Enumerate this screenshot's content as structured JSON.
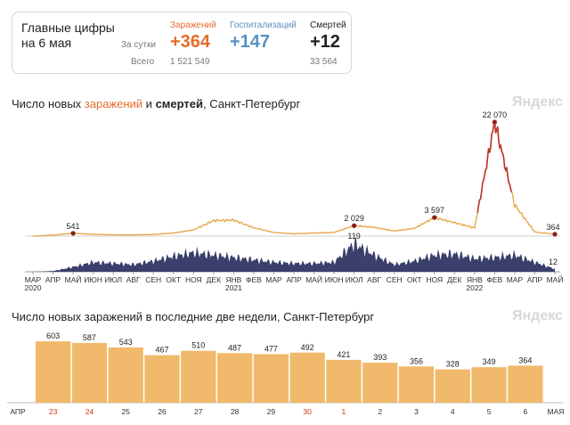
{
  "summary": {
    "title": "Главные цифры на 6 мая",
    "per_day_label": "За сутки",
    "total_label": "Всего",
    "columns": [
      {
        "header": "Заражений",
        "today": "+364",
        "total": "1 521 549",
        "color": "#e56c2c"
      },
      {
        "header": "Госпитализаций",
        "today": "+147",
        "total": "",
        "color": "#5a8fc4"
      },
      {
        "header": "Смертей",
        "today": "+12",
        "total": "33 564",
        "color": "#222222"
      }
    ]
  },
  "watermark": "Яндекс",
  "chart1": {
    "title_parts": [
      {
        "text": "Число новых ",
        "style": "normal"
      },
      {
        "text": "заражений",
        "style": "orange"
      },
      {
        "text": " и ",
        "style": "normal"
      },
      {
        "text": "смертей",
        "style": "bold"
      },
      {
        "text": ", Санкт-Петербург",
        "style": "normal"
      }
    ]
  },
  "chart2": {
    "title": "Число новых заражений в последние две недели, Санкт-Петербург"
  },
  "chart_data": [
    {
      "type": "area",
      "series": [
        {
          "name": "заражений",
          "color": "#e8a84c",
          "x_month_index": [
            0,
            1,
            2,
            3,
            4,
            5,
            6,
            7,
            8,
            9,
            10,
            11,
            12,
            13,
            14,
            15,
            16,
            17,
            18,
            19,
            20,
            21,
            22,
            23,
            24,
            25,
            26
          ],
          "values": [
            0,
            200,
            541,
            350,
            250,
            230,
            320,
            600,
            1200,
            3000,
            3100,
            1600,
            700,
            450,
            600,
            700,
            2029,
            1700,
            1000,
            1500,
            3597,
            2600,
            1600,
            22070,
            6000,
            800,
            364
          ]
        },
        {
          "name": "смертей",
          "color": "#3a3f6b",
          "x_month_index": [
            0,
            1,
            2,
            3,
            4,
            5,
            6,
            7,
            8,
            9,
            10,
            11,
            12,
            13,
            14,
            15,
            16,
            17,
            18,
            19,
            20,
            21,
            22,
            23,
            24,
            25,
            26
          ],
          "values": [
            0,
            3,
            20,
            40,
            35,
            30,
            45,
            65,
            80,
            70,
            60,
            50,
            40,
            35,
            35,
            40,
            119,
            70,
            30,
            45,
            70,
            75,
            55,
            60,
            70,
            40,
            12
          ]
        }
      ],
      "annotations": [
        {
          "label": "541",
          "series": "заражений"
        },
        {
          "label": "2 029",
          "series": "заражений"
        },
        {
          "label": "3 597",
          "series": "заражений"
        },
        {
          "label": "22 070",
          "series": "заражений"
        },
        {
          "label": "364",
          "series": "заражений"
        },
        {
          "label": "119",
          "series": "смертей"
        },
        {
          "label": "12",
          "series": "смертей"
        }
      ],
      "x_ticks": [
        "МАР 2020",
        "АПР",
        "МАЙ",
        "ИЮН",
        "ИЮЛ",
        "АВГ",
        "СЕН",
        "ОКТ",
        "НОЯ",
        "ДЕК",
        "ЯНВ 2021",
        "ФЕВ",
        "МАР",
        "АПР",
        "МАЙ",
        "ИЮН",
        "ИЮЛ",
        "АВГ",
        "СЕН",
        "ОКТ",
        "НОЯ",
        "ДЕК",
        "ЯНВ 2022",
        "ФЕВ",
        "МАР",
        "АПР",
        "МАЙ"
      ]
    },
    {
      "type": "bar",
      "color": "#f0b96b",
      "categories": [
        "23",
        "24",
        "25",
        "26",
        "27",
        "28",
        "29",
        "30",
        "1",
        "2",
        "3",
        "4",
        "5",
        "6"
      ],
      "values": [
        603,
        587,
        543,
        467,
        510,
        487,
        477,
        492,
        421,
        393,
        356,
        328,
        349,
        364
      ],
      "weekend": [
        true,
        true,
        false,
        false,
        false,
        false,
        false,
        true,
        true,
        false,
        false,
        false,
        false,
        false
      ],
      "month_labels": {
        "start": "АПР",
        "end": "МАЯ"
      },
      "ylim": [
        0,
        700
      ]
    }
  ]
}
